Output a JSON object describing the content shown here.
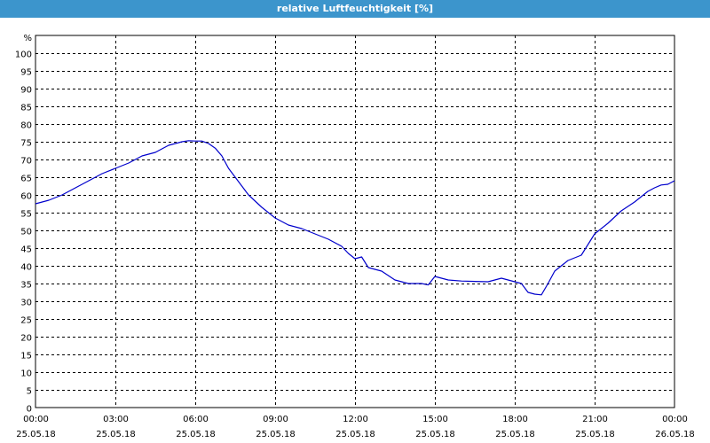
{
  "window": {
    "title": "relative Luftfeuchtigkeit [%]"
  },
  "colors": {
    "titlebar": "#3c95cc",
    "series": "#0000cc",
    "grid": "#000000",
    "background": "#ffffff"
  },
  "chart_data": {
    "type": "line",
    "title": "relative Luftfeuchtigkeit [%]",
    "ylabel": "%",
    "xlabel": "",
    "ylim": [
      0,
      105
    ],
    "xlim": [
      0,
      24
    ],
    "grid": true,
    "yticks": [
      "0",
      "5",
      "10",
      "15",
      "20",
      "25",
      "30",
      "35",
      "40",
      "45",
      "50",
      "55",
      "60",
      "65",
      "70",
      "75",
      "80",
      "85",
      "90",
      "95",
      "100"
    ],
    "xticks": [
      {
        "time": "00:00",
        "date": "25.05.18"
      },
      {
        "time": "03:00",
        "date": "25.05.18"
      },
      {
        "time": "06:00",
        "date": "25.05.18"
      },
      {
        "time": "09:00",
        "date": "25.05.18"
      },
      {
        "time": "12:00",
        "date": "25.05.18"
      },
      {
        "time": "15:00",
        "date": "25.05.18"
      },
      {
        "time": "18:00",
        "date": "25.05.18"
      },
      {
        "time": "21:00",
        "date": "25.05.18"
      },
      {
        "time": "00:00",
        "date": "26.05.18"
      }
    ],
    "series": [
      {
        "x": [
          0,
          0.5,
          1,
          1.5,
          2,
          2.5,
          3,
          3.5,
          4,
          4.5,
          5,
          5.25,
          5.5,
          5.75,
          6,
          6.25,
          6.5,
          6.75,
          7,
          7.25,
          7.5,
          8,
          8.5,
          9,
          9.5,
          10,
          10.5,
          11,
          11.5,
          11.75,
          12,
          12.25,
          12.5,
          13,
          13.5,
          14,
          14.5,
          14.75,
          15,
          15.5,
          16,
          16.5,
          17,
          17.5,
          18,
          18.25,
          18.5,
          18.75,
          19,
          19.25,
          19.5,
          20,
          20.5,
          21,
          21.5,
          22,
          22.5,
          23,
          23.25,
          23.5,
          23.75,
          24
        ],
        "y": [
          57.5,
          58.5,
          60,
          62,
          64,
          66,
          67.5,
          69,
          71,
          72,
          74,
          74.5,
          75,
          75.3,
          75.2,
          75.2,
          74.5,
          73.2,
          71,
          67.5,
          65,
          60,
          56.5,
          53.5,
          51.5,
          50.5,
          49,
          47.5,
          45.5,
          43.5,
          42,
          42.5,
          39.5,
          38.5,
          36,
          35,
          35,
          34.6,
          37,
          36,
          35.7,
          35.6,
          35.5,
          36.5,
          35.5,
          35,
          32.5,
          32,
          31.8,
          35,
          38.5,
          41.5,
          43,
          49,
          52,
          55.5,
          58,
          61,
          62,
          62.8,
          63,
          64
        ]
      }
    ]
  }
}
